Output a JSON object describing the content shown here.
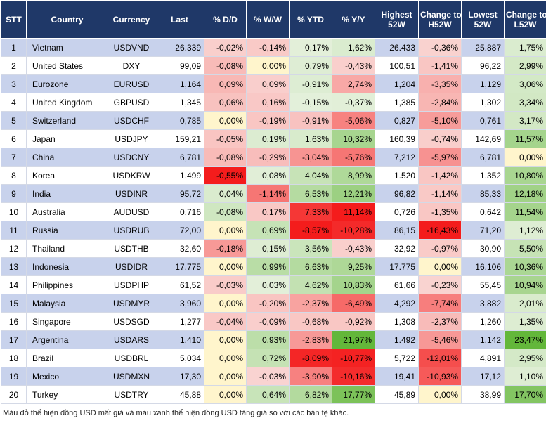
{
  "header": {
    "stt": "STT",
    "country": "Country",
    "currency": "Currency",
    "last": "Last",
    "dd": "% D/D",
    "ww": "% W/W",
    "ytd": "% YTD",
    "yy": "% Y/Y",
    "high": [
      "Highest",
      "52W"
    ],
    "chg_high": [
      "Change to",
      "H52W"
    ],
    "low": [
      "Lowest",
      "52W"
    ],
    "chg_low": [
      "Change to",
      "L52W"
    ]
  },
  "rows": [
    {
      "stt": "1",
      "country": "Vietnam",
      "currency": "USDVND",
      "last": "26.339",
      "dd": "-0,02%",
      "ww": "-0,14%",
      "ytd": "0,17%",
      "yy": "1,62%",
      "high": "26.433",
      "chg_high": "-0,36%",
      "low": "25.887",
      "chg_low": "1,75%"
    },
    {
      "stt": "2",
      "country": "United States",
      "currency": "DXY",
      "last": "99,09",
      "dd": "-0,08%",
      "ww": "0,00%",
      "ytd": "0,79%",
      "yy": "-0,43%",
      "high": "100,51",
      "chg_high": "-1,41%",
      "low": "96,22",
      "chg_low": "2,99%"
    },
    {
      "stt": "3",
      "country": "Eurozone",
      "currency": "EURUSD",
      "last": "1,164",
      "dd": "0,09%",
      "ww": "0,09%",
      "ytd": "-0,91%",
      "yy": "2,74%",
      "high": "1,204",
      "chg_high": "-3,35%",
      "low": "1,129",
      "chg_low": "3,06%"
    },
    {
      "stt": "4",
      "country": "United Kingdom",
      "currency": "GBPUSD",
      "last": "1,345",
      "dd": "0,06%",
      "ww": "0,16%",
      "ytd": "-0,15%",
      "yy": "-0,37%",
      "high": "1,385",
      "chg_high": "-2,84%",
      "low": "1,302",
      "chg_low": "3,34%"
    },
    {
      "stt": "5",
      "country": "Switzerland",
      "currency": "USDCHF",
      "last": "0,785",
      "dd": "0,00%",
      "ww": "-0,19%",
      "ytd": "-0,91%",
      "yy": "-5,06%",
      "high": "0,827",
      "chg_high": "-5,10%",
      "low": "0,761",
      "chg_low": "3,17%"
    },
    {
      "stt": "6",
      "country": "Japan",
      "currency": "USDJPY",
      "last": "159,21",
      "dd": "-0,05%",
      "ww": "0,19%",
      "ytd": "1,63%",
      "yy": "10,32%",
      "high": "160,39",
      "chg_high": "-0,74%",
      "low": "142,69",
      "chg_low": "11,57%"
    },
    {
      "stt": "7",
      "country": "China",
      "currency": "USDCNY",
      "last": "6,781",
      "dd": "-0,08%",
      "ww": "-0,29%",
      "ytd": "-3,04%",
      "yy": "-5,76%",
      "high": "7,212",
      "chg_high": "-5,97%",
      "low": "6,781",
      "chg_low": "0,00%"
    },
    {
      "stt": "8",
      "country": "Korea",
      "currency": "USDKRW",
      "last": "1.499",
      "dd": "-0,55%",
      "ww": "0,08%",
      "ytd": "4,04%",
      "yy": "8,99%",
      "high": "1.520",
      "chg_high": "-1,42%",
      "low": "1.352",
      "chg_low": "10,80%"
    },
    {
      "stt": "9",
      "country": "India",
      "currency": "USDINR",
      "last": "95,72",
      "dd": "0,04%",
      "ww": "-1,14%",
      "ytd": "6,53%",
      "yy": "12,21%",
      "high": "96,82",
      "chg_high": "-1,14%",
      "low": "85,33",
      "chg_low": "12,18%"
    },
    {
      "stt": "10",
      "country": "Australia",
      "currency": "AUDUSD",
      "last": "0,716",
      "dd": "-0,08%",
      "ww": "0,17%",
      "ytd": "7,33%",
      "yy": "11,14%",
      "high": "0,726",
      "chg_high": "-1,35%",
      "low": "0,642",
      "chg_low": "11,54%"
    },
    {
      "stt": "11",
      "country": "Russia",
      "currency": "USDRUB",
      "last": "72,00",
      "dd": "0,00%",
      "ww": "0,69%",
      "ytd": "-8,57%",
      "yy": "-10,28%",
      "high": "86,15",
      "chg_high": "-16,43%",
      "low": "71,20",
      "chg_low": "1,12%"
    },
    {
      "stt": "12",
      "country": "Thailand",
      "currency": "USDTHB",
      "last": "32,60",
      "dd": "-0,18%",
      "ww": "0,15%",
      "ytd": "3,56%",
      "yy": "-0,43%",
      "high": "32,92",
      "chg_high": "-0,97%",
      "low": "30,90",
      "chg_low": "5,50%"
    },
    {
      "stt": "13",
      "country": "Indonesia",
      "currency": "USDIDR",
      "last": "17.775",
      "dd": "0,00%",
      "ww": "0,99%",
      "ytd": "6,63%",
      "yy": "9,25%",
      "high": "17.775",
      "chg_high": "0,00%",
      "low": "16.106",
      "chg_low": "10,36%"
    },
    {
      "stt": "14",
      "country": "Philippines",
      "currency": "USDPHP",
      "last": "61,52",
      "dd": "-0,03%",
      "ww": "0,03%",
      "ytd": "4,62%",
      "yy": "10,83%",
      "high": "61,66",
      "chg_high": "-0,23%",
      "low": "55,45",
      "chg_low": "10,94%"
    },
    {
      "stt": "15",
      "country": "Malaysia",
      "currency": "USDMYR",
      "last": "3,960",
      "dd": "0,00%",
      "ww": "-0,20%",
      "ytd": "-2,37%",
      "yy": "-6,49%",
      "high": "4,292",
      "chg_high": "-7,74%",
      "low": "3,882",
      "chg_low": "2,01%"
    },
    {
      "stt": "16",
      "country": "Singapore",
      "currency": "USDSGD",
      "last": "1,277",
      "dd": "-0,04%",
      "ww": "-0,09%",
      "ytd": "-0,68%",
      "yy": "-0,92%",
      "high": "1,308",
      "chg_high": "-2,37%",
      "low": "1,260",
      "chg_low": "1,35%"
    },
    {
      "stt": "17",
      "country": "Argentina",
      "currency": "USDARS",
      "last": "1.410",
      "dd": "0,00%",
      "ww": "0,93%",
      "ytd": "-2,83%",
      "yy": "21,97%",
      "high": "1.492",
      "chg_high": "-5,46%",
      "low": "1.142",
      "chg_low": "23,47%"
    },
    {
      "stt": "18",
      "country": "Brazil",
      "currency": "USDBRL",
      "last": "5,034",
      "dd": "0,00%",
      "ww": "0,72%",
      "ytd": "-8,09%",
      "yy": "-10,77%",
      "high": "5,722",
      "chg_high": "-12,01%",
      "low": "4,891",
      "chg_low": "2,95%"
    },
    {
      "stt": "19",
      "country": "Mexico",
      "currency": "USDMXN",
      "last": "17,30",
      "dd": "0,00%",
      "ww": "-0,03%",
      "ytd": "-3,90%",
      "yy": "-10,16%",
      "high": "19,41",
      "chg_high": "-10,93%",
      "low": "17,12",
      "chg_low": "1,10%"
    },
    {
      "stt": "20",
      "country": "Turkey",
      "currency": "USDTRY",
      "last": "45,88",
      "dd": "0,00%",
      "ww": "0,64%",
      "ytd": "6,82%",
      "yy": "17,77%",
      "high": "45,89",
      "chg_high": "0,00%",
      "low": "38,99",
      "chg_low": "17,70%"
    }
  ],
  "footnote": "Màu đỏ thể hiện đồng USD mất giá và màu xanh thể hiện đồng USD tăng giá so với các bản tệ khác.",
  "colors": {
    "header_bg": "#1f3868",
    "band": "#c8d2ec",
    "usd_down_light": "#f9d6d3",
    "usd_down": "#f41c1c",
    "usd_up_light": "#e4f0db",
    "usd_up": "#63b73a",
    "no_change": "#fff5cc"
  }
}
